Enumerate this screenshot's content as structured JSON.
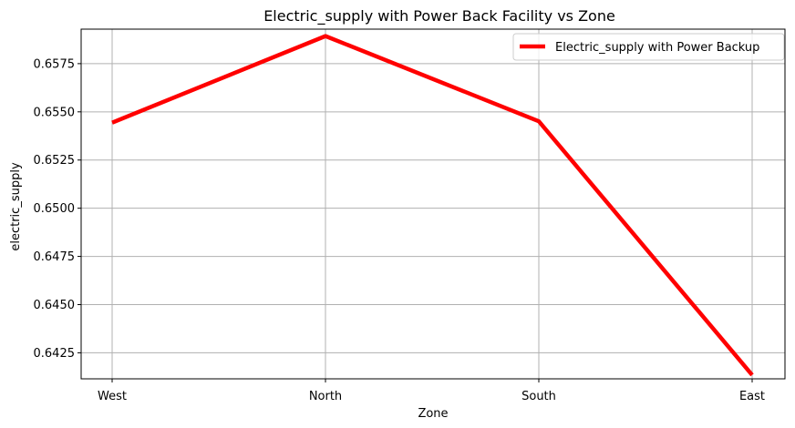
{
  "chart_data": {
    "type": "line",
    "title": "Electric_supply with Power Back Facility vs Zone",
    "xlabel": "Zone",
    "ylabel": "electric_supply",
    "categories": [
      "West",
      "North",
      "South",
      "East"
    ],
    "series": [
      {
        "name": "Electric_supply with Power Backup",
        "values": [
          0.65444,
          0.65893,
          0.65451,
          0.64135
        ],
        "color": "#ff0000"
      }
    ],
    "ylim": [
      0.64115,
      0.65929
    ],
    "yticks": [
      "0.6425",
      "0.6450",
      "0.6475",
      "0.6500",
      "0.6525",
      "0.6550",
      "0.6575"
    ],
    "grid": true,
    "legend_position": "top-right"
  }
}
